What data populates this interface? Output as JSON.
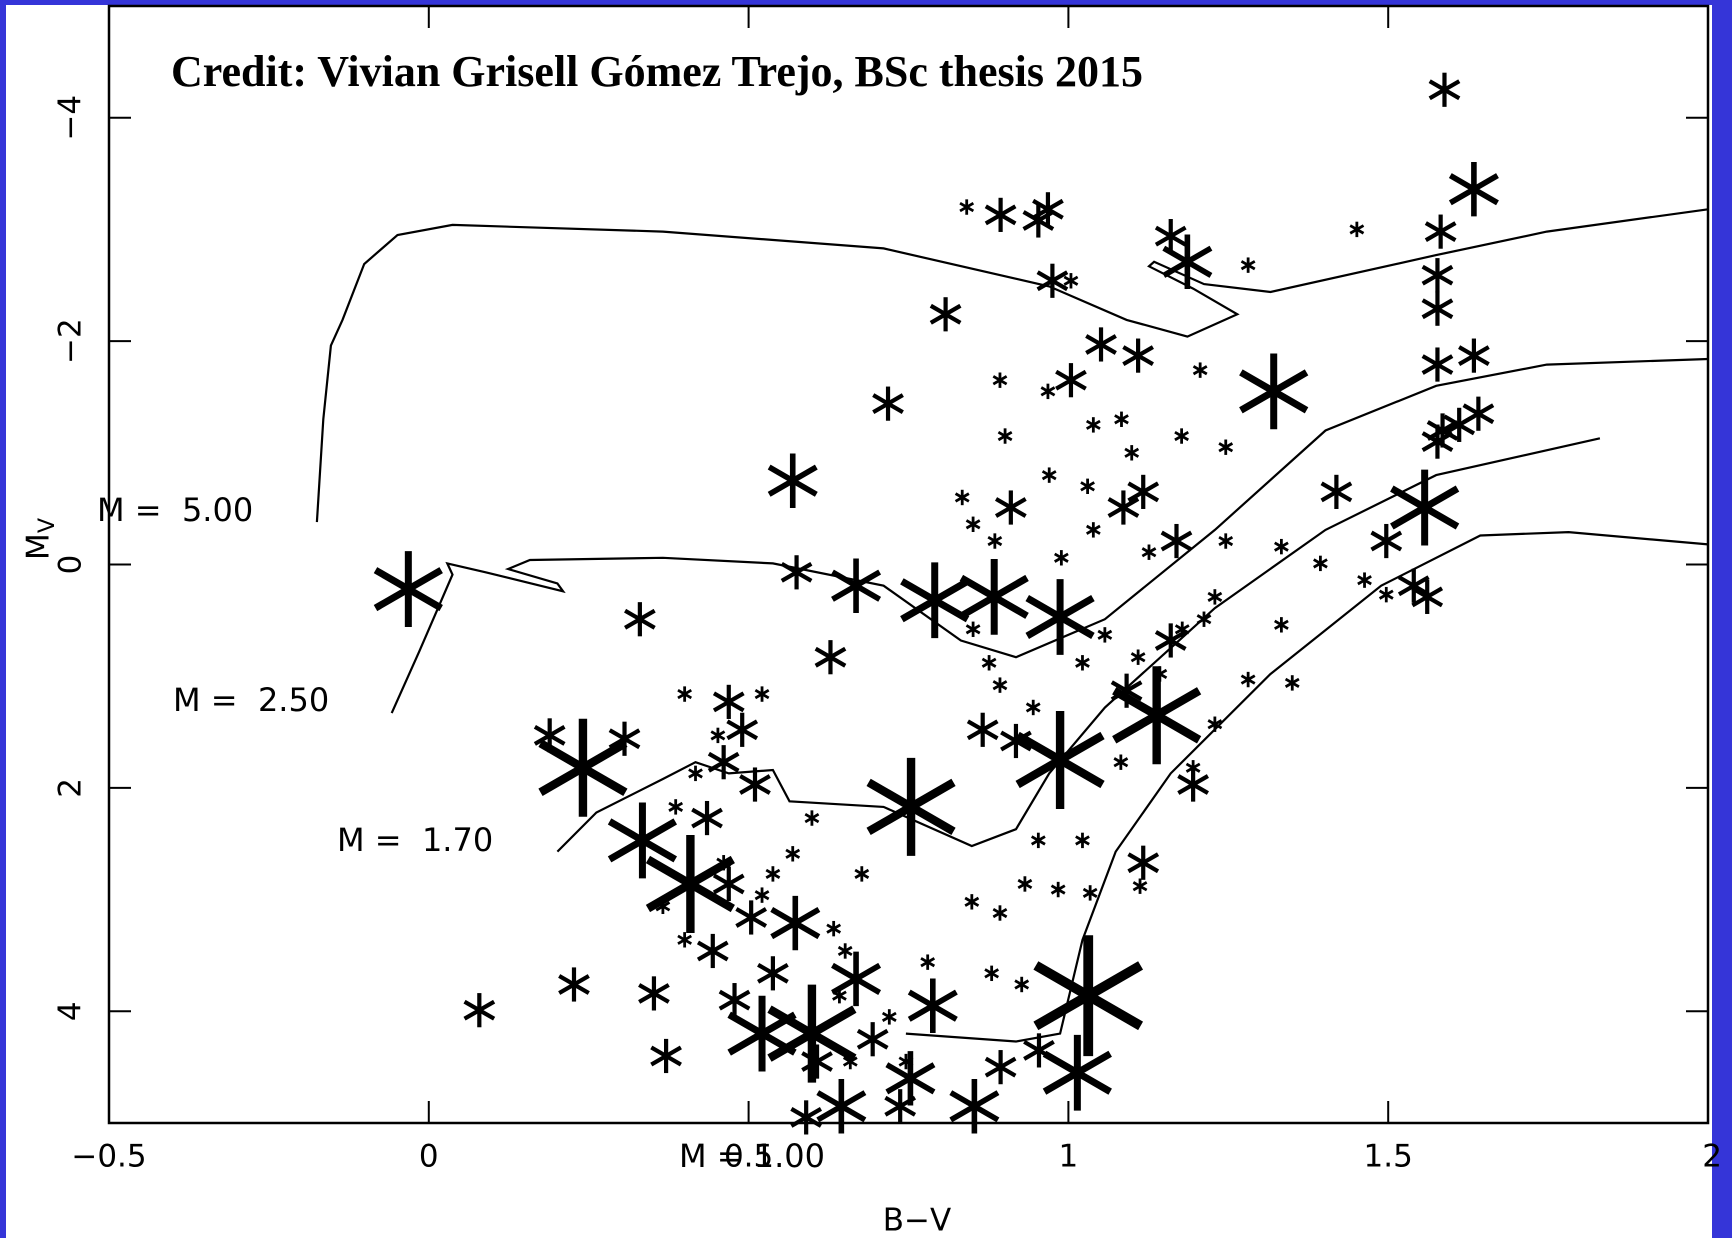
{
  "chart_data": {
    "type": "scatter",
    "title": "Credit: Vivian Grisell Gómez Trejo, BSc thesis 2015",
    "xlabel": "B−V",
    "ylabel": "M",
    "ylabel_sub": "V",
    "xlim": [
      -0.5,
      2
    ],
    "ylim": [
      -5,
      5
    ],
    "y_inverted": true,
    "xticks": [
      {
        "value": -0.5,
        "label": "−0.5"
      },
      0,
      0.5,
      1,
      1.5,
      2
    ],
    "yticks": [
      {
        "value": -4,
        "label": "−4"
      },
      {
        "value": -2,
        "label": "−2"
      },
      0,
      2,
      4
    ],
    "color": "#000000",
    "x": [
      -0.032,
      0.569,
      1.321,
      1.557,
      1.588,
      1.634,
      1.186,
      0.975,
      0.953,
      0.668,
      0.791,
      0.884,
      0.987,
      1.138,
      0.987,
      0.241,
      0.334,
      0.409,
      0.573,
      0.668,
      0.599,
      0.521,
      0.753,
      0.788,
      0.853,
      1.031,
      1.014,
      0.754,
      0.371,
      0.645,
      1.582,
      1.634,
      1.577,
      1.585,
      1.641,
      1.561,
      1.497,
      1.577,
      1.109,
      1.051,
      0.808,
      0.894,
      0.968,
      1.16,
      0.718,
      1.004,
      1.086,
      0.91,
      0.469,
      0.49,
      0.461,
      0.51,
      0.435,
      0.189,
      0.306,
      0.227,
      0.352,
      0.079,
      0.33,
      0.575,
      0.628,
      0.866,
      0.918,
      1.091,
      1.16,
      1.169,
      1.117,
      1.419,
      1.54,
      1.577,
      1.577,
      1.611,
      1.195,
      1.117,
      0.469,
      0.504,
      0.444,
      0.538,
      0.478,
      0.607,
      0.694,
      0.894,
      0.954,
      0.737,
      0.59,
      0.841,
      1.451,
      1.281,
      1.004,
      0.893,
      0.968,
      0.901,
      1.039,
      1.083,
      0.97,
      1.03,
      1.099,
      1.177,
      1.246,
      1.206,
      0.834,
      0.851,
      0.885,
      0.989,
      1.039,
      1.126,
      1.246,
      1.333,
      1.394,
      1.463,
      1.497,
      1.229,
      1.212,
      1.333,
      1.281,
      1.35,
      1.229,
      1.195,
      1.082,
      0.851,
      0.876,
      0.893,
      0.945,
      1.022,
      1.057,
      1.109,
      1.143,
      1.178,
      1.022,
      0.953,
      0.932,
      0.984,
      1.034,
      1.112,
      0.849,
      0.893,
      0.88,
      0.927,
      0.78,
      0.677,
      0.651,
      0.633,
      0.599,
      0.569,
      0.4,
      0.521,
      0.452,
      0.417,
      0.386,
      0.538,
      0.521,
      0.642,
      0.72,
      0.746,
      0.659,
      0.4,
      0.366,
      0.461
    ],
    "y": [
      0.22,
      -0.75,
      -1.55,
      -0.51,
      -4.25,
      -3.36,
      -2.71,
      -2.54,
      -3.08,
      0.19,
      0.32,
      0.29,
      0.47,
      1.35,
      1.75,
      1.82,
      2.47,
      2.86,
      3.21,
      3.71,
      4.2,
      4.2,
      4.6,
      3.95,
      4.85,
      3.86,
      4.55,
      2.17,
      4.4,
      4.85,
      -2.98,
      -1.87,
      -1.79,
      -1.2,
      -1.35,
      0.29,
      -0.21,
      -1.1,
      -1.87,
      -1.97,
      -2.24,
      -3.13,
      -3.18,
      -2.94,
      -1.44,
      -1.65,
      -0.51,
      -0.51,
      1.23,
      1.48,
      1.77,
      1.97,
      2.27,
      1.53,
      1.56,
      3.76,
      3.84,
      3.99,
      0.49,
      0.07,
      0.83,
      1.48,
      1.58,
      1.13,
      0.68,
      -0.21,
      -0.65,
      -0.65,
      0.19,
      -2.59,
      -2.29,
      -1.25,
      1.97,
      2.67,
      2.86,
      3.16,
      3.46,
      3.66,
      3.9,
      4.45,
      4.25,
      4.5,
      4.35,
      4.85,
      4.95,
      -3.2,
      -3.0,
      -2.68,
      -2.54,
      -1.65,
      -1.55,
      -1.15,
      -1.25,
      -1.3,
      -0.8,
      -0.7,
      -1.0,
      -1.15,
      -1.05,
      -1.74,
      -0.6,
      -0.36,
      -0.21,
      -0.06,
      -0.31,
      -0.11,
      -0.21,
      -0.16,
      -0.01,
      0.14,
      0.27,
      0.29,
      0.49,
      0.54,
      1.03,
      1.06,
      1.43,
      1.82,
      1.77,
      0.58,
      0.88,
      1.08,
      1.28,
      0.88,
      0.63,
      0.83,
      0.98,
      0.58,
      2.47,
      2.47,
      2.86,
      2.91,
      2.94,
      2.88,
      3.02,
      3.12,
      3.66,
      3.76,
      3.56,
      2.77,
      3.46,
      3.26,
      2.27,
      2.59,
      1.16,
      1.16,
      1.53,
      1.87,
      2.17,
      2.77,
      2.96,
      3.86,
      4.05,
      4.45,
      4.45,
      3.36,
      3.06,
      2.67
    ],
    "sizes": [
      4,
      3,
      4,
      4,
      2,
      3,
      3,
      2,
      2,
      3,
      4,
      4,
      4,
      5,
      5,
      5,
      4,
      5,
      3,
      3,
      5,
      4,
      3,
      3,
      3,
      6,
      4,
      5,
      2,
      3,
      2,
      2,
      2,
      2,
      2,
      2,
      2,
      2,
      2,
      2,
      2,
      2,
      2,
      2,
      2,
      2,
      2,
      2,
      2,
      2,
      2,
      2,
      2,
      2,
      2,
      2,
      2,
      2,
      2,
      2,
      2,
      2,
      2,
      2,
      2,
      2,
      2,
      2,
      2,
      2,
      2,
      2,
      2,
      2,
      2,
      2,
      2,
      2,
      2,
      2,
      2,
      2,
      2,
      2,
      2,
      1,
      1,
      1,
      1,
      1,
      1,
      1,
      1,
      1,
      1,
      1,
      1,
      1,
      1,
      1,
      1,
      1,
      1,
      1,
      1,
      1,
      1,
      1,
      1,
      1,
      1,
      1,
      1,
      1,
      1,
      1,
      1,
      1,
      1,
      1,
      1,
      1,
      1,
      1,
      1,
      1,
      1,
      1,
      1,
      1,
      1,
      1,
      1,
      1,
      1,
      1,
      1,
      1,
      1,
      1,
      1,
      1,
      1,
      1,
      1,
      1,
      1,
      1,
      1,
      1,
      1,
      1,
      1,
      1,
      1,
      1,
      1,
      1
    ],
    "tracks": [
      {
        "label": "M =  5.00",
        "x": [
          -0.175,
          -0.165,
          -0.153,
          -0.135,
          -0.101,
          -0.049,
          0.037,
          0.366,
          0.711,
          0.97,
          1.091,
          1.186,
          1.264,
          1.195,
          1.126,
          1.134,
          1.212,
          1.316,
          1.575,
          1.748,
          2.0
        ],
        "y": [
          -0.38,
          -1.3,
          -1.96,
          -2.19,
          -2.69,
          -2.95,
          -3.04,
          -2.98,
          -2.83,
          -2.49,
          -2.19,
          -2.04,
          -2.24,
          -2.47,
          -2.67,
          -2.71,
          -2.51,
          -2.44,
          -2.77,
          -2.98,
          -3.18
        ]
      },
      {
        "label": "M =  2.50",
        "x": [
          -0.058,
          -0.015,
          0.037,
          0.029,
          0.089,
          0.21,
          0.201,
          0.124,
          0.158,
          0.366,
          0.538,
          0.711,
          0.832,
          0.918,
          1.057,
          1.229,
          1.402,
          1.575,
          1.748,
          2.0
        ],
        "y": [
          1.33,
          0.78,
          0.09,
          -0.01,
          0.07,
          0.24,
          0.17,
          0.04,
          -0.04,
          -0.06,
          -0.01,
          0.19,
          0.68,
          0.83,
          0.49,
          -0.31,
          -1.2,
          -1.6,
          -1.79,
          -1.84
        ]
      },
      {
        "label": "M =  1.70",
        "x": [
          0.201,
          0.262,
          0.366,
          0.417,
          0.469,
          0.538,
          0.564,
          0.711,
          0.849,
          0.918,
          0.97,
          1.057,
          1.229,
          1.402,
          1.575,
          1.831
        ],
        "y": [
          2.57,
          2.22,
          1.92,
          1.77,
          1.87,
          1.84,
          2.12,
          2.17,
          2.52,
          2.37,
          1.87,
          1.28,
          0.39,
          -0.31,
          -0.8,
          -1.13
        ]
      },
      {
        "label": "M = 1.00",
        "x": [
          0.746,
          0.918,
          0.987,
          1.022,
          1.074,
          1.16,
          1.316,
          1.489,
          1.644,
          1.782,
          2.0
        ],
        "y": [
          4.2,
          4.27,
          4.2,
          3.36,
          2.57,
          1.87,
          0.98,
          0.19,
          -0.26,
          -0.29,
          -0.18
        ]
      }
    ]
  }
}
